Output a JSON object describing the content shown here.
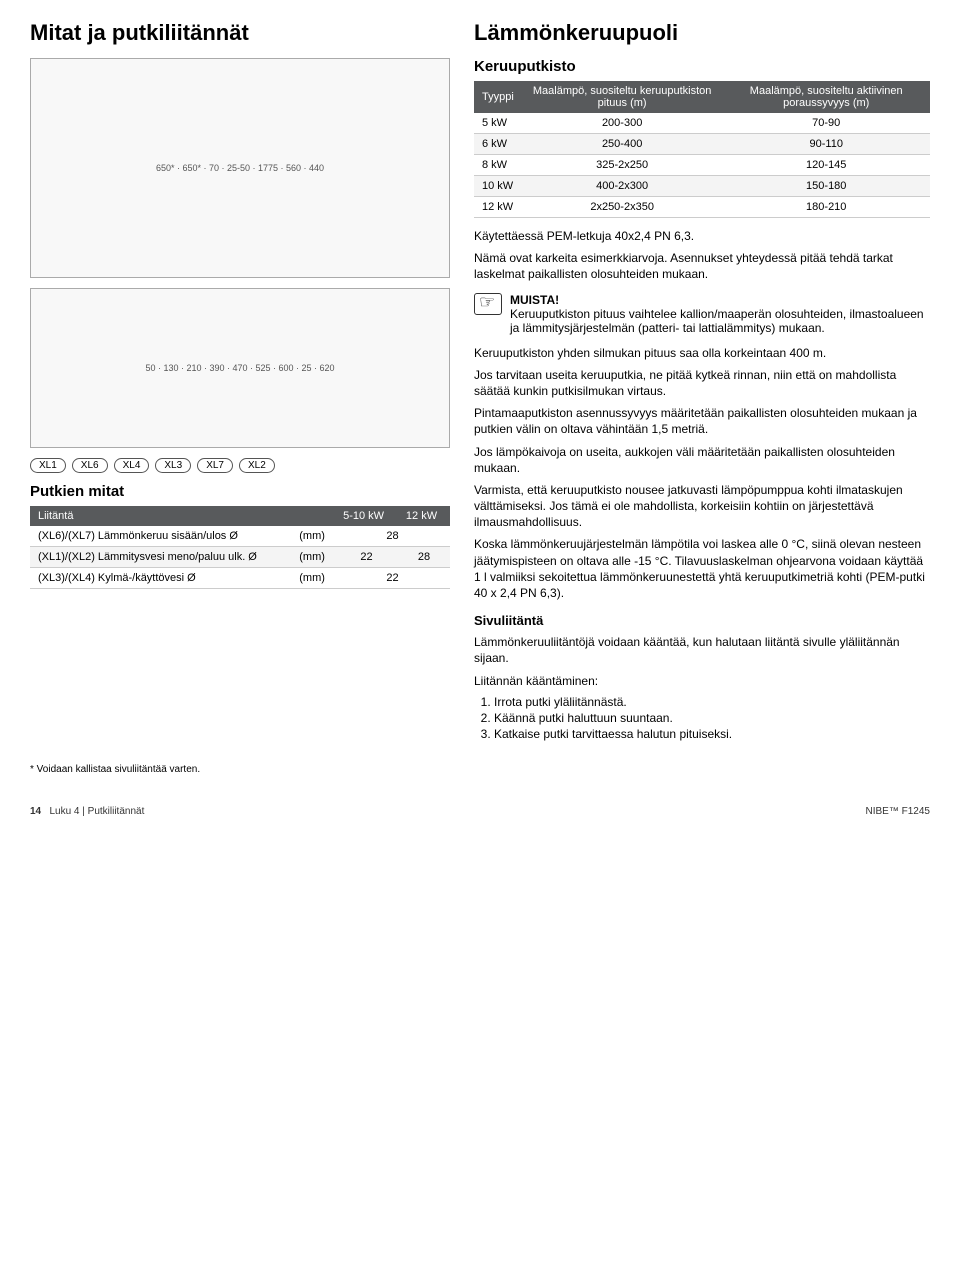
{
  "left": {
    "title": "Mitat ja putkiliitännät",
    "diagram1_dims": [
      "650*",
      "650*",
      "70",
      "25-50",
      "1775",
      "560",
      "440"
    ],
    "diagram2_dims": [
      "50",
      "130",
      "210",
      "390",
      "470",
      "525",
      "600",
      "25",
      "620"
    ],
    "xl_labels": [
      "XL1",
      "XL6",
      "XL4",
      "XL3",
      "XL7",
      "XL2"
    ],
    "putki_title": "Putkien mitat",
    "putki_table": {
      "headers": [
        "Liitäntä",
        "",
        "5-10 kW",
        "12 kW"
      ],
      "rows": [
        [
          "(XL6)/(XL7) Lämmönkeruu sisään/ulos Ø",
          "(mm)",
          "28",
          ""
        ],
        [
          "(XL1)/(XL2) Lämmitysvesi meno/paluu ulk. Ø",
          "(mm)",
          "22",
          "28"
        ],
        [
          "(XL3)/(XL4) Kylmä-/käyttövesi Ø",
          "(mm)",
          "22",
          ""
        ]
      ]
    }
  },
  "right": {
    "title": "Lämmönkeruupuoli",
    "subtitle": "Keruuputkisto",
    "keruu_table": {
      "headers": [
        "Tyyppi",
        "Maalämpö, suositeltu keruuputkiston pituus (m)",
        "Maalämpö, suositeltu aktiivinen poraussyvyys (m)"
      ],
      "rows": [
        [
          "5 kW",
          "200-300",
          "70-90"
        ],
        [
          "6 kW",
          "250-400",
          "90-110"
        ],
        [
          "8 kW",
          "325-2x250",
          "120-145"
        ],
        [
          "10 kW",
          "400-2x300",
          "150-180"
        ],
        [
          "12 kW",
          "2x250-2x350",
          "180-210"
        ]
      ]
    },
    "p1": "Käytettäessä PEM-letkuja 40x2,4 PN 6,3.",
    "p2": "Nämä ovat karkeita esimerkkiarvoja. Asennukset yhteydessä pitää tehdä tarkat laskelmat paikallisten olosuhteiden mukaan.",
    "note_title": "MUISTA!",
    "note_body": "Keruuputkiston pituus vaihtelee kallion/maaperän olosuhteiden, ilmastoalueen ja lämmitysjärjestelmän (patteri- tai lattialämmitys) mukaan.",
    "p3": "Keruuputkiston yhden silmukan pituus saa olla korkeintaan 400 m.",
    "p4": "Jos tarvitaan useita keruuputkia, ne pitää kytkeä rinnan, niin että on mahdollista säätää kunkin putkisilmukan virtaus.",
    "p5": "Pintamaaputkiston asennussyvyys määritetään paikallisten olosuhteiden mukaan ja putkien välin on oltava vähintään 1,5 metriä.",
    "p6": "Jos lämpökaivoja on useita, aukkojen väli määritetään paikallisten olosuhteiden mukaan.",
    "p7": "Varmista, että keruuputkisto nousee jatkuvasti lämpöpumppua kohti ilmataskujen välttämiseksi. Jos tämä ei ole mahdollista, korkeisiin kohtiin on järjestettävä ilmausmahdollisuus.",
    "p8": "Koska lämmönkeruujärjestelmän lämpötila voi laskea alle 0 °C, siinä olevan nesteen jäätymispisteen on oltava alle -15 °C. Tilavuuslaskelman ohjearvona voidaan käyttää 1 l valmiiksi sekoitettua lämmönkeruunestettä yhtä keruuputkimetriä kohti (PEM-putki 40 x 2,4 PN 6,3).",
    "sivu_title": "Sivuliitäntä",
    "sivu_p1": "Lämmönkeruuliitäntöjä voidaan kääntää, kun halutaan liitäntä sivulle yläliitännän sijaan.",
    "sivu_p2": "Liitännän kääntäminen:",
    "sivu_steps": [
      "Irrota putki yläliitännästä.",
      "Käännä putki haluttuun suuntaan.",
      "Katkaise putki tarvittaessa halutun pituiseksi."
    ]
  },
  "footnote": "* Voidaan kallistaa sivuliitäntää varten.",
  "footer": {
    "page": "14",
    "chapter": "Luku 4 | Putkiliitännät",
    "product": "NIBE™ F1245"
  }
}
